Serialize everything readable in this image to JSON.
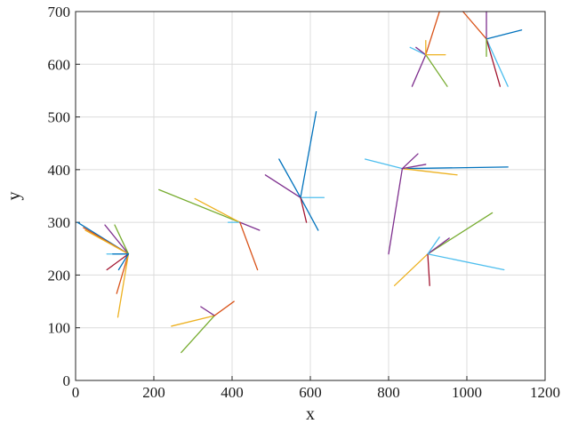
{
  "chart_data": {
    "type": "line",
    "xlabel": "x",
    "ylabel": "y",
    "xlim": [
      0,
      1200
    ],
    "ylim": [
      0,
      700
    ],
    "xticks": [
      0,
      200,
      400,
      600,
      800,
      1000,
      1200
    ],
    "yticks": [
      0,
      100,
      200,
      300,
      400,
      500,
      600,
      700
    ],
    "grid": true,
    "colors": [
      "#0072BD",
      "#D95319",
      "#EDB120",
      "#7E2F8E",
      "#77AC30",
      "#4DBEEE",
      "#A2142F"
    ],
    "clusters": [
      {
        "center": [
          135,
          240
        ],
        "segments": [
          {
            "to": [
              5,
              300
            ],
            "color": "#0072BD"
          },
          {
            "to": [
              20,
              290
            ],
            "color": "#D95319"
          },
          {
            "to": [
              25,
              285
            ],
            "color": "#EDB120"
          },
          {
            "to": [
              75,
              295
            ],
            "color": "#7E2F8E"
          },
          {
            "to": [
              100,
              295
            ],
            "color": "#77AC30"
          },
          {
            "to": [
              80,
              240
            ],
            "color": "#4DBEEE"
          },
          {
            "to": [
              80,
              210
            ],
            "color": "#A2142F"
          },
          {
            "to": [
              105,
              165
            ],
            "color": "#D95319"
          },
          {
            "to": [
              108,
              120
            ],
            "color": "#EDB120"
          },
          {
            "to": [
              110,
              210
            ],
            "color": "#0072BD"
          },
          {
            "to": [
              95,
              240
            ],
            "color": "#0072BD"
          }
        ]
      },
      {
        "center": [
          355,
          123
        ],
        "segments": [
          {
            "to": [
              245,
              103
            ],
            "color": "#EDB120"
          },
          {
            "to": [
              270,
              53
            ],
            "color": "#77AC30"
          },
          {
            "to": [
              320,
              140
            ],
            "color": "#7E2F8E"
          },
          {
            "to": [
              405,
              150
            ],
            "color": "#D95319"
          }
        ]
      },
      {
        "center": [
          420,
          300
        ],
        "segments": [
          {
            "to": [
              213,
              362
            ],
            "color": "#77AC30"
          },
          {
            "to": [
              305,
              345
            ],
            "color": "#EDB120"
          },
          {
            "to": [
              390,
              300
            ],
            "color": "#4DBEEE"
          },
          {
            "to": [
              470,
              285
            ],
            "color": "#7E2F8E"
          },
          {
            "to": [
              465,
              210
            ],
            "color": "#D95319"
          }
        ]
      },
      {
        "center": [
          575,
          347
        ],
        "segments": [
          {
            "to": [
              615,
              510
            ],
            "color": "#0072BD"
          },
          {
            "to": [
              485,
              390
            ],
            "color": "#7E2F8E"
          },
          {
            "to": [
              520,
              420
            ],
            "color": "#0072BD"
          },
          {
            "to": [
              635,
              347
            ],
            "color": "#4DBEEE"
          },
          {
            "to": [
              620,
              285
            ],
            "color": "#0072BD"
          },
          {
            "to": [
              590,
              300
            ],
            "color": "#A2142F"
          }
        ]
      },
      {
        "center": [
          835,
          402
        ],
        "segments": [
          {
            "to": [
              740,
              420
            ],
            "color": "#4DBEEE"
          },
          {
            "to": [
              1105,
              405
            ],
            "color": "#0072BD"
          },
          {
            "to": [
              975,
              390
            ],
            "color": "#EDB120"
          },
          {
            "to": [
              875,
              430
            ],
            "color": "#7E2F8E"
          },
          {
            "to": [
              895,
              410
            ],
            "color": "#7E2F8E"
          },
          {
            "to": [
              800,
              240
            ],
            "color": "#7E2F8E"
          }
        ]
      },
      {
        "center": [
          900,
          240
        ],
        "segments": [
          {
            "to": [
              1065,
              318
            ],
            "color": "#77AC30"
          },
          {
            "to": [
              1095,
              210
            ],
            "color": "#4DBEEE"
          },
          {
            "to": [
              815,
              180
            ],
            "color": "#EDB120"
          },
          {
            "to": [
              905,
              180
            ],
            "color": "#A2142F"
          },
          {
            "to": [
              955,
              270
            ],
            "color": "#7E2F8E"
          },
          {
            "to": [
              930,
              272
            ],
            "color": "#4DBEEE"
          }
        ]
      },
      {
        "center": [
          895,
          618
        ],
        "segments": [
          {
            "to": [
              930,
              700
            ],
            "color": "#D95319"
          },
          {
            "to": [
              860,
              558
            ],
            "color": "#7E2F8E"
          },
          {
            "to": [
              950,
              558
            ],
            "color": "#77AC30"
          },
          {
            "to": [
              945,
              618
            ],
            "color": "#EDB120"
          },
          {
            "to": [
              855,
              632
            ],
            "color": "#4DBEEE"
          },
          {
            "to": [
              870,
              632
            ],
            "color": "#7E2F8E"
          },
          {
            "to": [
              895,
              645
            ],
            "color": "#EDB120"
          }
        ]
      },
      {
        "center": [
          1050,
          648
        ],
        "segments": [
          {
            "to": [
              990,
              700
            ],
            "color": "#D95319"
          },
          {
            "to": [
              1050,
              700
            ],
            "color": "#7E2F8E"
          },
          {
            "to": [
              1140,
              665
            ],
            "color": "#0072BD"
          },
          {
            "to": [
              1105,
              558
            ],
            "color": "#4DBEEE"
          },
          {
            "to": [
              1085,
              558
            ],
            "color": "#A2142F"
          },
          {
            "to": [
              1050,
              615
            ],
            "color": "#77AC30"
          }
        ]
      }
    ]
  }
}
